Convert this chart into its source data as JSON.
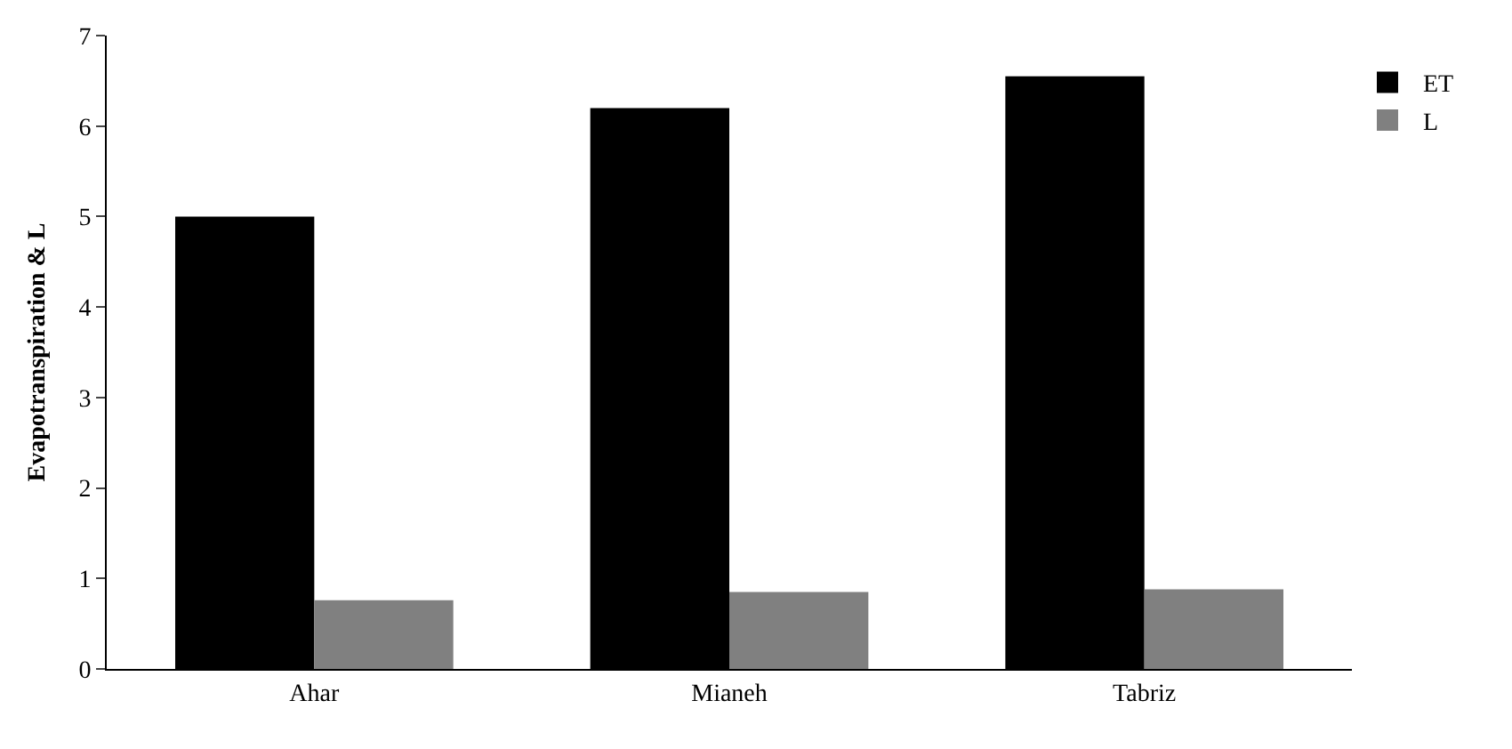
{
  "chart_data": {
    "type": "bar",
    "ylabel": "Evapotranspiration & L",
    "categories": [
      "Ahar",
      "Mianeh",
      "Tabriz"
    ],
    "series": [
      {
        "name": "ET",
        "color": "#000000",
        "values": [
          5.0,
          6.2,
          6.55
        ]
      },
      {
        "name": "L",
        "color": "#808080",
        "values": [
          0.76,
          0.85,
          0.88
        ]
      }
    ],
    "ylim": [
      0,
      7
    ],
    "yticks": [
      0,
      1,
      2,
      3,
      4,
      5,
      6,
      7
    ],
    "legend": "top right"
  }
}
